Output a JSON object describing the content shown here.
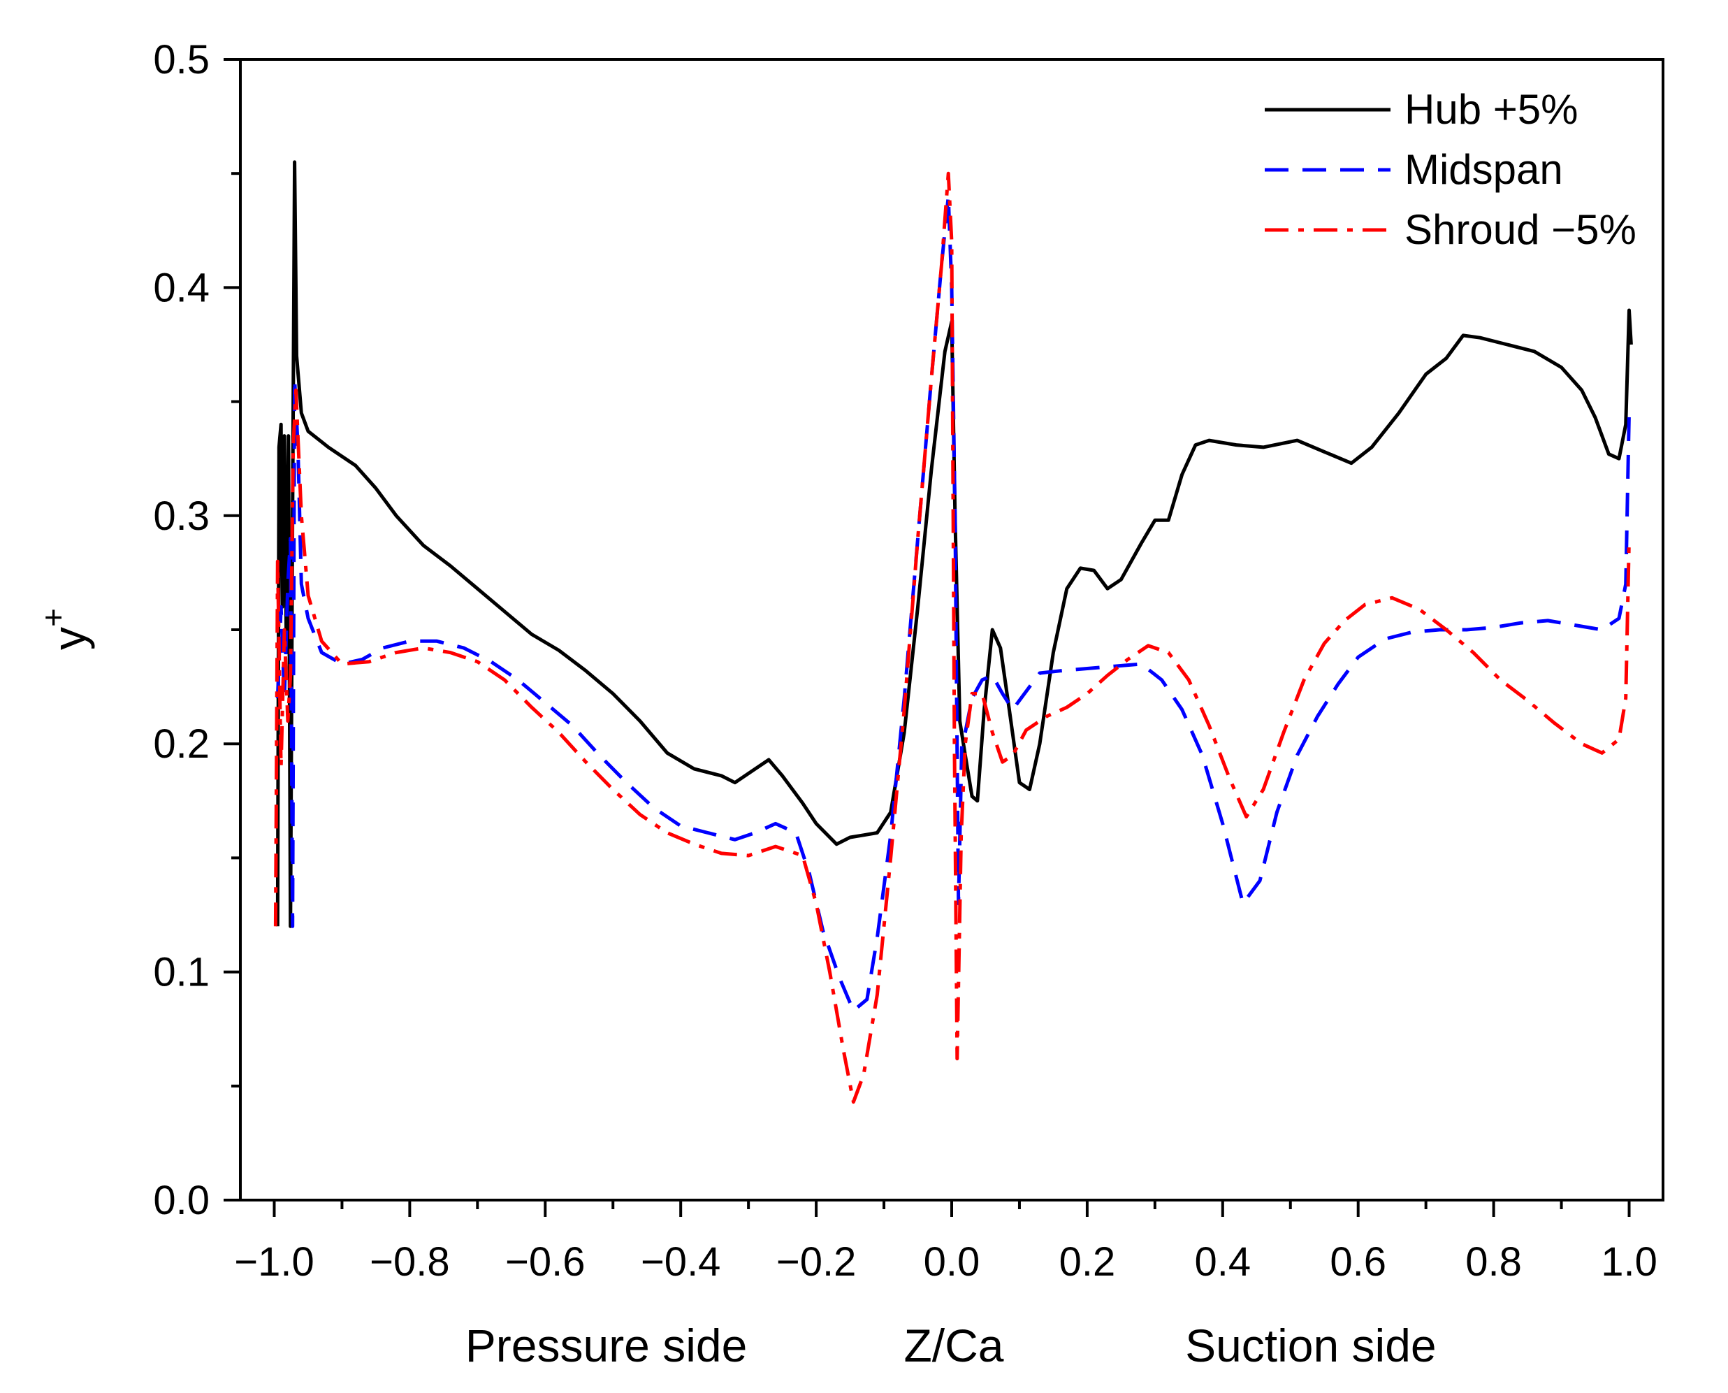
{
  "chart_data": {
    "type": "line",
    "title": "",
    "xlabel": "Z/Ca",
    "ylabel": "y",
    "ylabel_superscript": "+",
    "xlim": [
      -1.05,
      1.05
    ],
    "ylim": [
      0.0,
      0.5
    ],
    "x_ticks": [
      {
        "value": -1.0,
        "label": "−1.0"
      },
      {
        "value": -0.8,
        "label": "−0.8"
      },
      {
        "value": -0.6,
        "label": "−0.6"
      },
      {
        "value": -0.4,
        "label": "−0.4"
      },
      {
        "value": -0.2,
        "label": "−0.2"
      },
      {
        "value": 0.0,
        "label": "0.0"
      },
      {
        "value": 0.2,
        "label": "0.2"
      },
      {
        "value": 0.4,
        "label": "0.4"
      },
      {
        "value": 0.6,
        "label": "0.6"
      },
      {
        "value": 0.8,
        "label": "0.8"
      },
      {
        "value": 1.0,
        "label": "1.0"
      }
    ],
    "y_ticks": [
      {
        "value": 0.0,
        "label": "0.0"
      },
      {
        "value": 0.1,
        "label": "0.1"
      },
      {
        "value": 0.2,
        "label": "0.2"
      },
      {
        "value": 0.3,
        "label": "0.3"
      },
      {
        "value": 0.4,
        "label": "0.4"
      },
      {
        "value": 0.5,
        "label": "0.5"
      }
    ],
    "annotations": {
      "pressure_side": "Pressure side",
      "suction_side": "Suction side"
    },
    "annotation_x": {
      "pressure_side": -0.51,
      "suction_side": 0.53
    },
    "grid": false,
    "legend_position": "top-right",
    "series": [
      {
        "name": "Hub +5%",
        "color": "#000000",
        "style": "solid",
        "points": [
          [
            -0.995,
            0.12
          ],
          [
            -0.993,
            0.33
          ],
          [
            -0.99,
            0.34
          ],
          [
            -0.988,
            0.26
          ],
          [
            -0.985,
            0.335
          ],
          [
            -0.982,
            0.24
          ],
          [
            -0.979,
            0.335
          ],
          [
            -0.976,
            0.12
          ],
          [
            -0.973,
            0.3
          ],
          [
            -0.97,
            0.455
          ],
          [
            -0.967,
            0.37
          ],
          [
            -0.96,
            0.345
          ],
          [
            -0.95,
            0.337
          ],
          [
            -0.92,
            0.33
          ],
          [
            -0.88,
            0.322
          ],
          [
            -0.85,
            0.312
          ],
          [
            -0.82,
            0.3
          ],
          [
            -0.78,
            0.287
          ],
          [
            -0.74,
            0.278
          ],
          [
            -0.7,
            0.268
          ],
          [
            -0.66,
            0.258
          ],
          [
            -0.62,
            0.248
          ],
          [
            -0.58,
            0.241
          ],
          [
            -0.54,
            0.232
          ],
          [
            -0.5,
            0.222
          ],
          [
            -0.46,
            0.21
          ],
          [
            -0.42,
            0.196
          ],
          [
            -0.38,
            0.189
          ],
          [
            -0.34,
            0.186
          ],
          [
            -0.32,
            0.183
          ],
          [
            -0.29,
            0.189
          ],
          [
            -0.27,
            0.193
          ],
          [
            -0.25,
            0.186
          ],
          [
            -0.22,
            0.174
          ],
          [
            -0.2,
            0.165
          ],
          [
            -0.17,
            0.156
          ],
          [
            -0.15,
            0.159
          ],
          [
            -0.13,
            0.16
          ],
          [
            -0.11,
            0.161
          ],
          [
            -0.09,
            0.17
          ],
          [
            -0.07,
            0.205
          ],
          [
            -0.05,
            0.26
          ],
          [
            -0.03,
            0.32
          ],
          [
            -0.01,
            0.372
          ],
          [
            0.0,
            0.385
          ],
          [
            0.005,
            0.3
          ],
          [
            0.012,
            0.21
          ],
          [
            0.02,
            0.195
          ],
          [
            0.03,
            0.177
          ],
          [
            0.038,
            0.175
          ],
          [
            0.048,
            0.215
          ],
          [
            0.06,
            0.25
          ],
          [
            0.072,
            0.242
          ],
          [
            0.085,
            0.215
          ],
          [
            0.1,
            0.183
          ],
          [
            0.115,
            0.18
          ],
          [
            0.13,
            0.2
          ],
          [
            0.15,
            0.24
          ],
          [
            0.17,
            0.268
          ],
          [
            0.19,
            0.277
          ],
          [
            0.21,
            0.276
          ],
          [
            0.23,
            0.268
          ],
          [
            0.25,
            0.272
          ],
          [
            0.28,
            0.288
          ],
          [
            0.3,
            0.298
          ],
          [
            0.32,
            0.298
          ],
          [
            0.34,
            0.318
          ],
          [
            0.36,
            0.331
          ],
          [
            0.38,
            0.333
          ],
          [
            0.42,
            0.331
          ],
          [
            0.46,
            0.33
          ],
          [
            0.51,
            0.333
          ],
          [
            0.55,
            0.328
          ],
          [
            0.59,
            0.323
          ],
          [
            0.62,
            0.33
          ],
          [
            0.66,
            0.345
          ],
          [
            0.7,
            0.362
          ],
          [
            0.73,
            0.369
          ],
          [
            0.755,
            0.379
          ],
          [
            0.78,
            0.378
          ],
          [
            0.82,
            0.375
          ],
          [
            0.86,
            0.372
          ],
          [
            0.9,
            0.365
          ],
          [
            0.93,
            0.355
          ],
          [
            0.95,
            0.343
          ],
          [
            0.97,
            0.327
          ],
          [
            0.985,
            0.325
          ],
          [
            0.995,
            0.34
          ],
          [
            1.0,
            0.39
          ],
          [
            1.003,
            0.375
          ]
        ]
      },
      {
        "name": "Midspan",
        "color": "#0000ff",
        "style": "dashed",
        "points": [
          [
            -0.995,
            0.22
          ],
          [
            -0.99,
            0.26
          ],
          [
            -0.985,
            0.22
          ],
          [
            -0.98,
            0.27
          ],
          [
            -0.976,
            0.29
          ],
          [
            -0.973,
            0.12
          ],
          [
            -0.97,
            0.36
          ],
          [
            -0.965,
            0.33
          ],
          [
            -0.96,
            0.27
          ],
          [
            -0.95,
            0.255
          ],
          [
            -0.93,
            0.24
          ],
          [
            -0.9,
            0.235
          ],
          [
            -0.87,
            0.237
          ],
          [
            -0.84,
            0.242
          ],
          [
            -0.8,
            0.245
          ],
          [
            -0.76,
            0.245
          ],
          [
            -0.72,
            0.242
          ],
          [
            -0.68,
            0.236
          ],
          [
            -0.64,
            0.228
          ],
          [
            -0.6,
            0.218
          ],
          [
            -0.56,
            0.208
          ],
          [
            -0.52,
            0.195
          ],
          [
            -0.48,
            0.183
          ],
          [
            -0.44,
            0.172
          ],
          [
            -0.4,
            0.164
          ],
          [
            -0.36,
            0.161
          ],
          [
            -0.32,
            0.158
          ],
          [
            -0.29,
            0.161
          ],
          [
            -0.26,
            0.165
          ],
          [
            -0.23,
            0.161
          ],
          [
            -0.21,
            0.143
          ],
          [
            -0.19,
            0.118
          ],
          [
            -0.165,
            0.097
          ],
          [
            -0.145,
            0.083
          ],
          [
            -0.125,
            0.088
          ],
          [
            -0.11,
            0.115
          ],
          [
            -0.09,
            0.16
          ],
          [
            -0.07,
            0.22
          ],
          [
            -0.05,
            0.29
          ],
          [
            -0.03,
            0.36
          ],
          [
            -0.015,
            0.41
          ],
          [
            -0.005,
            0.44
          ],
          [
            0.0,
            0.4
          ],
          [
            0.005,
            0.3
          ],
          [
            0.01,
            0.13
          ],
          [
            0.015,
            0.2
          ],
          [
            0.02,
            0.205
          ],
          [
            0.03,
            0.22
          ],
          [
            0.045,
            0.228
          ],
          [
            0.06,
            0.23
          ],
          [
            0.075,
            0.222
          ],
          [
            0.09,
            0.215
          ],
          [
            0.11,
            0.223
          ],
          [
            0.13,
            0.231
          ],
          [
            0.16,
            0.232
          ],
          [
            0.2,
            0.233
          ],
          [
            0.24,
            0.234
          ],
          [
            0.28,
            0.235
          ],
          [
            0.31,
            0.228
          ],
          [
            0.34,
            0.215
          ],
          [
            0.37,
            0.195
          ],
          [
            0.4,
            0.165
          ],
          [
            0.43,
            0.13
          ],
          [
            0.455,
            0.14
          ],
          [
            0.48,
            0.17
          ],
          [
            0.51,
            0.195
          ],
          [
            0.54,
            0.212
          ],
          [
            0.57,
            0.226
          ],
          [
            0.6,
            0.238
          ],
          [
            0.64,
            0.246
          ],
          [
            0.68,
            0.249
          ],
          [
            0.72,
            0.25
          ],
          [
            0.76,
            0.25
          ],
          [
            0.8,
            0.251
          ],
          [
            0.84,
            0.253
          ],
          [
            0.88,
            0.254
          ],
          [
            0.92,
            0.252
          ],
          [
            0.96,
            0.25
          ],
          [
            0.985,
            0.255
          ],
          [
            0.995,
            0.27
          ],
          [
            1.0,
            0.345
          ]
        ]
      },
      {
        "name": "Shroud −5%",
        "color": "#ff0000",
        "style": "dashdot",
        "points": [
          [
            -0.998,
            0.12
          ],
          [
            -0.995,
            0.28
          ],
          [
            -0.99,
            0.19
          ],
          [
            -0.985,
            0.25
          ],
          [
            -0.98,
            0.21
          ],
          [
            -0.976,
            0.23
          ],
          [
            -0.972,
            0.33
          ],
          [
            -0.968,
            0.355
          ],
          [
            -0.96,
            0.3
          ],
          [
            -0.95,
            0.265
          ],
          [
            -0.93,
            0.245
          ],
          [
            -0.9,
            0.235
          ],
          [
            -0.86,
            0.236
          ],
          [
            -0.82,
            0.24
          ],
          [
            -0.78,
            0.242
          ],
          [
            -0.74,
            0.24
          ],
          [
            -0.7,
            0.236
          ],
          [
            -0.66,
            0.228
          ],
          [
            -0.62,
            0.216
          ],
          [
            -0.58,
            0.205
          ],
          [
            -0.54,
            0.192
          ],
          [
            -0.5,
            0.18
          ],
          [
            -0.46,
            0.169
          ],
          [
            -0.42,
            0.161
          ],
          [
            -0.38,
            0.156
          ],
          [
            -0.34,
            0.152
          ],
          [
            -0.3,
            0.151
          ],
          [
            -0.26,
            0.155
          ],
          [
            -0.22,
            0.151
          ],
          [
            -0.2,
            0.13
          ],
          [
            -0.18,
            0.1
          ],
          [
            -0.16,
            0.066
          ],
          [
            -0.145,
            0.043
          ],
          [
            -0.13,
            0.055
          ],
          [
            -0.11,
            0.09
          ],
          [
            -0.09,
            0.15
          ],
          [
            -0.07,
            0.215
          ],
          [
            -0.05,
            0.29
          ],
          [
            -0.03,
            0.36
          ],
          [
            -0.015,
            0.41
          ],
          [
            -0.005,
            0.45
          ],
          [
            0.0,
            0.42
          ],
          [
            0.004,
            0.2
          ],
          [
            0.008,
            0.062
          ],
          [
            0.014,
            0.16
          ],
          [
            0.02,
            0.2
          ],
          [
            0.03,
            0.222
          ],
          [
            0.045,
            0.222
          ],
          [
            0.06,
            0.205
          ],
          [
            0.075,
            0.192
          ],
          [
            0.09,
            0.195
          ],
          [
            0.11,
            0.206
          ],
          [
            0.14,
            0.212
          ],
          [
            0.17,
            0.216
          ],
          [
            0.2,
            0.222
          ],
          [
            0.23,
            0.23
          ],
          [
            0.26,
            0.237
          ],
          [
            0.29,
            0.243
          ],
          [
            0.32,
            0.24
          ],
          [
            0.35,
            0.228
          ],
          [
            0.38,
            0.208
          ],
          [
            0.41,
            0.185
          ],
          [
            0.435,
            0.168
          ],
          [
            0.46,
            0.18
          ],
          [
            0.49,
            0.205
          ],
          [
            0.52,
            0.228
          ],
          [
            0.55,
            0.244
          ],
          [
            0.58,
            0.254
          ],
          [
            0.61,
            0.261
          ],
          [
            0.65,
            0.264
          ],
          [
            0.69,
            0.259
          ],
          [
            0.73,
            0.25
          ],
          [
            0.77,
            0.24
          ],
          [
            0.81,
            0.228
          ],
          [
            0.85,
            0.219
          ],
          [
            0.89,
            0.209
          ],
          [
            0.93,
            0.2
          ],
          [
            0.96,
            0.196
          ],
          [
            0.985,
            0.202
          ],
          [
            0.995,
            0.22
          ],
          [
            1.0,
            0.29
          ]
        ]
      }
    ]
  }
}
